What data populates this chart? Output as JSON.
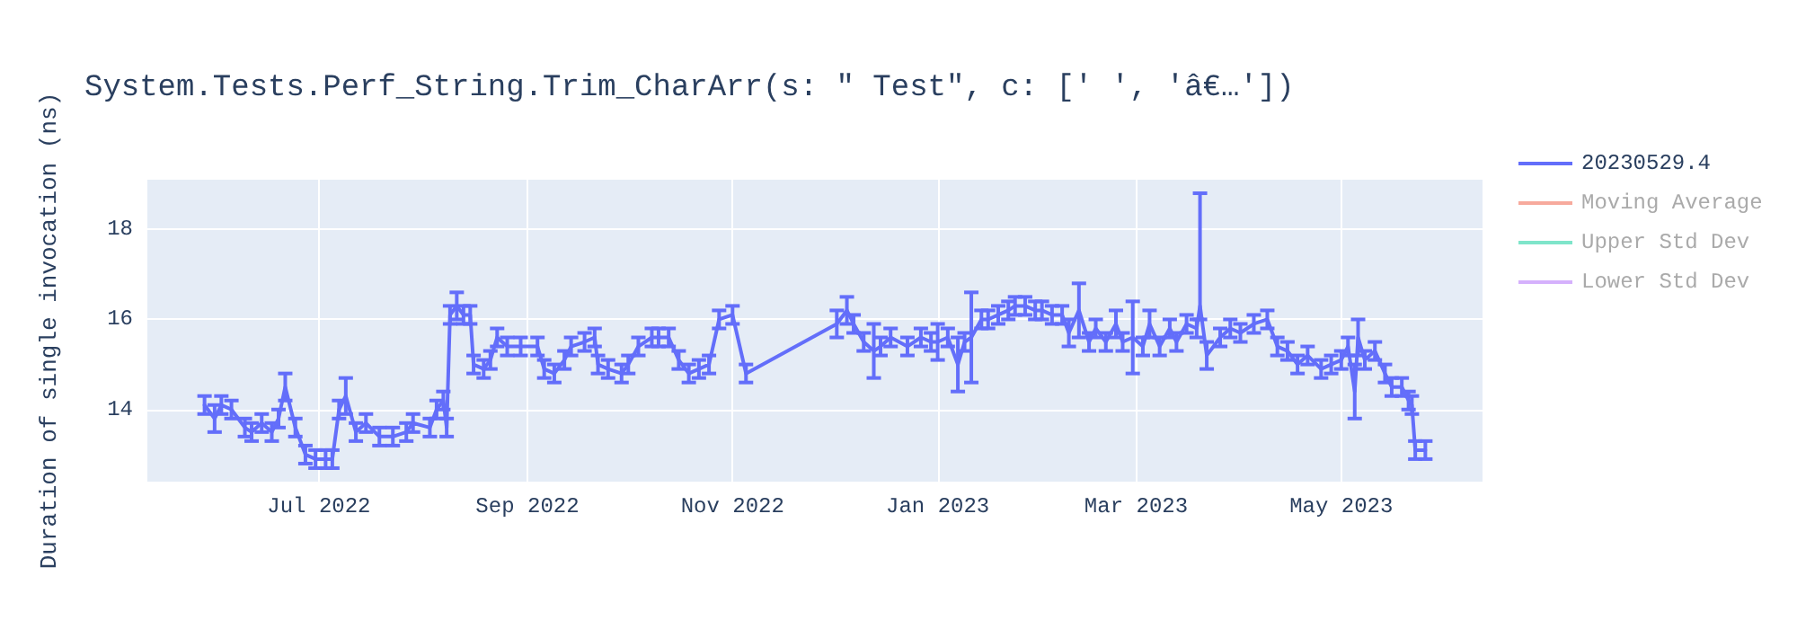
{
  "chart_data": {
    "type": "line",
    "title": "System.Tests.Perf_String.Trim_CharArr(s: \" Test\", c: [' ', 'â€…'])",
    "ylabel": "Duration of single invocation (ns)",
    "x": [
      "2022-05-28",
      "2022-05-31",
      "2022-06-02",
      "2022-06-05",
      "2022-06-09",
      "2022-06-11",
      "2022-06-14",
      "2022-06-17",
      "2022-06-19",
      "2022-06-21",
      "2022-06-24",
      "2022-06-27",
      "2022-06-30",
      "2022-07-03",
      "2022-07-05",
      "2022-07-07",
      "2022-07-09",
      "2022-07-12",
      "2022-07-15",
      "2022-07-19",
      "2022-07-23",
      "2022-07-27",
      "2022-07-29",
      "2022-08-03",
      "2022-08-05",
      "2022-08-07",
      "2022-08-08",
      "2022-08-09",
      "2022-08-11",
      "2022-08-13",
      "2022-08-15",
      "2022-08-16",
      "2022-08-19",
      "2022-08-21",
      "2022-08-23",
      "2022-08-26",
      "2022-08-30",
      "2022-09-04",
      "2022-09-06",
      "2022-09-09",
      "2022-09-12",
      "2022-09-14",
      "2022-09-18",
      "2022-09-21",
      "2022-09-22",
      "2022-09-25",
      "2022-09-29",
      "2022-10-01",
      "2022-10-04",
      "2022-10-08",
      "2022-10-10",
      "2022-10-13",
      "2022-10-16",
      "2022-10-19",
      "2022-10-22",
      "2022-10-25",
      "2022-10-28",
      "2022-11-01",
      "2022-11-05",
      "2022-12-02",
      "2022-12-05",
      "2022-12-07",
      "2022-12-10",
      "2022-12-13",
      "2022-12-15",
      "2022-12-18",
      "2022-12-23",
      "2022-12-27",
      "2022-12-30",
      "2023-01-01",
      "2023-01-04",
      "2023-01-07",
      "2023-01-09",
      "2023-01-11",
      "2023-01-14",
      "2023-01-16",
      "2023-01-19",
      "2023-01-22",
      "2023-01-24",
      "2023-01-27",
      "2023-01-30",
      "2023-02-01",
      "2023-02-04",
      "2023-02-07",
      "2023-02-09",
      "2023-02-12",
      "2023-02-15",
      "2023-02-17",
      "2023-02-20",
      "2023-02-23",
      "2023-02-25",
      "2023-02-28",
      "2023-03-03",
      "2023-03-05",
      "2023-03-08",
      "2023-03-11",
      "2023-03-13",
      "2023-03-16",
      "2023-03-19",
      "2023-03-20",
      "2023-03-22",
      "2023-03-26",
      "2023-03-29",
      "2023-04-01",
      "2023-04-05",
      "2023-04-09",
      "2023-04-12",
      "2023-04-15",
      "2023-04-18",
      "2023-04-21",
      "2023-04-25",
      "2023-04-28",
      "2023-05-01",
      "2023-05-03",
      "2023-05-05",
      "2023-05-06",
      "2023-05-08",
      "2023-05-11",
      "2023-05-14",
      "2023-05-16",
      "2023-05-19",
      "2023-05-21",
      "2023-05-22",
      "2023-05-23",
      "2023-05-26"
    ],
    "series": [
      {
        "name": "20230529.4",
        "color": "#636efa",
        "values": [
          14.1,
          13.8,
          14.1,
          14.0,
          13.6,
          13.5,
          13.7,
          13.5,
          13.8,
          14.5,
          13.6,
          13.0,
          12.9,
          12.9,
          12.9,
          14.0,
          14.3,
          13.5,
          13.7,
          13.4,
          13.4,
          13.5,
          13.7,
          13.6,
          14.0,
          14.2,
          13.6,
          16.1,
          16.3,
          16.1,
          16.1,
          15.0,
          14.9,
          15.1,
          15.6,
          15.4,
          15.4,
          15.4,
          14.9,
          14.8,
          15.1,
          15.4,
          15.5,
          15.6,
          15.0,
          14.9,
          14.8,
          15.0,
          15.4,
          15.6,
          15.6,
          15.6,
          15.1,
          14.8,
          14.9,
          15.0,
          16.0,
          16.1,
          14.8,
          15.9,
          16.2,
          15.9,
          15.5,
          15.3,
          15.4,
          15.6,
          15.4,
          15.6,
          15.5,
          15.5,
          15.6,
          15.0,
          15.5,
          15.6,
          16.0,
          16.0,
          16.1,
          16.2,
          16.3,
          16.3,
          16.2,
          16.2,
          16.1,
          16.1,
          15.7,
          16.2,
          15.5,
          15.8,
          15.5,
          15.9,
          15.5,
          15.6,
          15.4,
          15.9,
          15.4,
          15.8,
          15.5,
          15.9,
          15.8,
          16.3,
          15.2,
          15.6,
          15.8,
          15.7,
          15.9,
          16.0,
          15.4,
          15.3,
          15.0,
          15.2,
          14.9,
          15.0,
          15.1,
          15.4,
          14.4,
          15.6,
          15.1,
          15.3,
          14.8,
          14.5,
          14.5,
          14.2,
          14.1,
          13.1,
          13.1
        ],
        "errors": [
          0.2,
          0.3,
          0.2,
          0.2,
          0.2,
          0.2,
          0.2,
          0.2,
          0.2,
          0.3,
          0.2,
          0.2,
          0.2,
          0.2,
          0.2,
          0.2,
          0.4,
          0.2,
          0.2,
          0.2,
          0.2,
          0.2,
          0.2,
          0.2,
          0.2,
          0.2,
          0.2,
          0.2,
          0.3,
          0.2,
          0.2,
          0.2,
          0.2,
          0.2,
          0.2,
          0.2,
          0.2,
          0.2,
          0.2,
          0.2,
          0.2,
          0.2,
          0.2,
          0.2,
          0.2,
          0.2,
          0.2,
          0.2,
          0.2,
          0.2,
          0.2,
          0.2,
          0.2,
          0.2,
          0.2,
          0.2,
          0.2,
          0.2,
          0.2,
          0.3,
          0.3,
          0.2,
          0.2,
          0.6,
          0.2,
          0.2,
          0.2,
          0.2,
          0.2,
          0.4,
          0.2,
          0.6,
          0.2,
          1.0,
          0.2,
          0.2,
          0.2,
          0.2,
          0.2,
          0.2,
          0.2,
          0.2,
          0.2,
          0.2,
          0.3,
          0.6,
          0.2,
          0.2,
          0.2,
          0.3,
          0.2,
          0.8,
          0.2,
          0.3,
          0.2,
          0.2,
          0.2,
          0.2,
          0.2,
          [
            16.0,
            18.8
          ],
          0.3,
          0.2,
          0.2,
          0.2,
          0.2,
          0.2,
          0.2,
          0.2,
          0.2,
          0.2,
          0.2,
          0.2,
          0.2,
          0.2,
          0.6,
          0.4,
          0.2,
          0.2,
          0.2,
          0.2,
          0.2,
          0.2,
          0.2,
          0.2,
          0.2
        ]
      },
      {
        "name": "Moving Average",
        "color": "#ef553b",
        "values": [
          null,
          null,
          null,
          null,
          null,
          null,
          null,
          null,
          null,
          null,
          null,
          null,
          null,
          null,
          null,
          null,
          null,
          null,
          null,
          null,
          null,
          null,
          null,
          null,
          null,
          null,
          null,
          null,
          null,
          null,
          null,
          null,
          null,
          null,
          null,
          null,
          null,
          null,
          null,
          null,
          null,
          null,
          null,
          null,
          null,
          null,
          null,
          null,
          null,
          null,
          null,
          null,
          null,
          null,
          null,
          null,
          null,
          null,
          null,
          null,
          null,
          null,
          null,
          null,
          null,
          null,
          null,
          null,
          null,
          null,
          null,
          null,
          null,
          null,
          null,
          null,
          null,
          null,
          null,
          null,
          null,
          null,
          null,
          null,
          null,
          null,
          null,
          null,
          null,
          null,
          null,
          null,
          null,
          null,
          null,
          null,
          null,
          null,
          null,
          null,
          null,
          null,
          null,
          null,
          null,
          null,
          null,
          null,
          null,
          null,
          null,
          null,
          null,
          null,
          null,
          null,
          null,
          null,
          null,
          null,
          null,
          null,
          null,
          null,
          null
        ]
      },
      {
        "name": "Upper Std Dev",
        "color": "#00cc96",
        "values": [
          null,
          null,
          null,
          null,
          null,
          null,
          null,
          null,
          null,
          null,
          null,
          null,
          null,
          null,
          null,
          null,
          null,
          null,
          null,
          null,
          null,
          null,
          null,
          null,
          null,
          null,
          null,
          null,
          null,
          null,
          null,
          null,
          null,
          null,
          null,
          null,
          null,
          null,
          null,
          null,
          null,
          null,
          null,
          null,
          null,
          null,
          null,
          null,
          null,
          null,
          null,
          null,
          null,
          null,
          null,
          null,
          null,
          null,
          null,
          null,
          null,
          null,
          null,
          null,
          null,
          null,
          null,
          null,
          null,
          null,
          null,
          null,
          null,
          null,
          null,
          null,
          null,
          null,
          null,
          null,
          null,
          null,
          null,
          null,
          null,
          null,
          null,
          null,
          null,
          null,
          null,
          null,
          null,
          null,
          null,
          null,
          null,
          null,
          null,
          null,
          null,
          null,
          null,
          null,
          null,
          null,
          null,
          null,
          null,
          null,
          null,
          null,
          null,
          null,
          null,
          null,
          null,
          null,
          null,
          null,
          null,
          null,
          null,
          null,
          null
        ]
      },
      {
        "name": "Lower Std Dev",
        "color": "#ab63fa",
        "values": [
          null,
          null,
          null,
          null,
          null,
          null,
          null,
          null,
          null,
          null,
          null,
          null,
          null,
          null,
          null,
          null,
          null,
          null,
          null,
          null,
          null,
          null,
          null,
          null,
          null,
          null,
          null,
          null,
          null,
          null,
          null,
          null,
          null,
          null,
          null,
          null,
          null,
          null,
          null,
          null,
          null,
          null,
          null,
          null,
          null,
          null,
          null,
          null,
          null,
          null,
          null,
          null,
          null,
          null,
          null,
          null,
          null,
          null,
          null,
          null,
          null,
          null,
          null,
          null,
          null,
          null,
          null,
          null,
          null,
          null,
          null,
          null,
          null,
          null,
          null,
          null,
          null,
          null,
          null,
          null,
          null,
          null,
          null,
          null,
          null,
          null,
          null,
          null,
          null,
          null,
          null,
          null,
          null,
          null,
          null,
          null,
          null,
          null,
          null,
          null,
          null,
          null,
          null,
          null,
          null,
          null,
          null,
          null,
          null,
          null,
          null,
          null,
          null,
          null,
          null,
          null,
          null,
          null,
          null,
          null,
          null,
          null,
          null,
          null,
          null
        ]
      }
    ],
    "xlim": [
      "2022-05-11",
      "2023-06-12"
    ],
    "xticks": [
      {
        "value": "2022-07-01",
        "label": "Jul 2022"
      },
      {
        "value": "2022-09-01",
        "label": "Sep 2022"
      },
      {
        "value": "2022-11-01",
        "label": "Nov 2022"
      },
      {
        "value": "2023-01-01",
        "label": "Jan 2023"
      },
      {
        "value": "2023-03-01",
        "label": "Mar 2023"
      },
      {
        "value": "2023-05-01",
        "label": "May 2023"
      }
    ],
    "ylim": [
      12.4,
      19.1
    ],
    "yticks": [
      14,
      16,
      18
    ],
    "grid": true,
    "legend": "top right",
    "marker": "none",
    "line_style": "solid"
  }
}
